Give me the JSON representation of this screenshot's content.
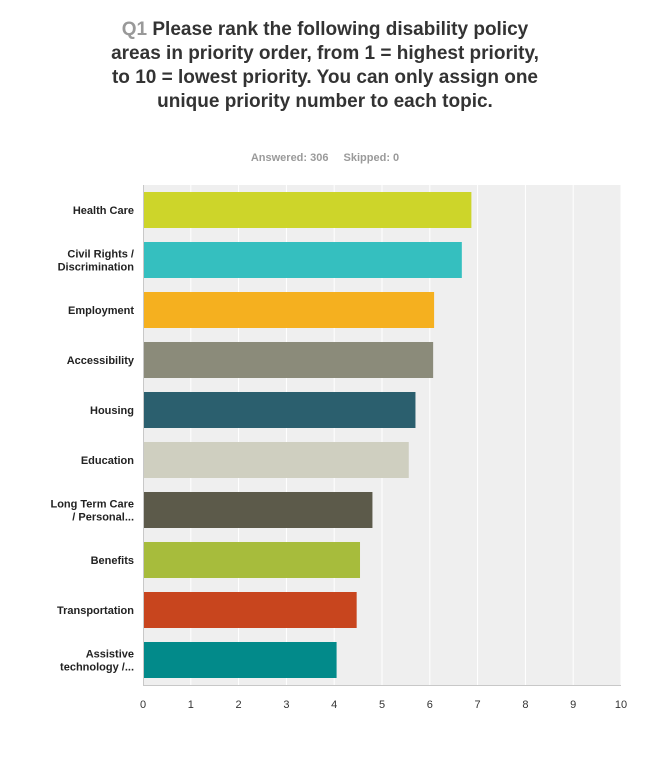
{
  "question": {
    "number": "Q1",
    "text": "Please rank the following disability policy areas in priority order, from 1 = highest priority, to 10 = lowest priority. You can only assign one unique priority number to each topic."
  },
  "meta": {
    "answered": "Answered: 306",
    "skipped": "Skipped: 0"
  },
  "chart_data": {
    "type": "bar",
    "orientation": "horizontal",
    "title": "",
    "xlabel": "",
    "ylabel": "",
    "xlim": [
      0,
      10
    ],
    "ticks": [
      0,
      1,
      2,
      3,
      4,
      5,
      6,
      7,
      8,
      9,
      10
    ],
    "grid": true,
    "categories": [
      [
        "Health Care"
      ],
      [
        "Civil Rights /",
        "Discrimination"
      ],
      [
        "Employment"
      ],
      [
        "Accessibility"
      ],
      [
        "Housing"
      ],
      [
        "Education"
      ],
      [
        "Long Term Care",
        "/ Personal..."
      ],
      [
        "Benefits"
      ],
      [
        "Transportation"
      ],
      [
        "Assistive",
        "technology /..."
      ]
    ],
    "values": [
      6.87,
      6.67,
      6.09,
      6.07,
      5.7,
      5.56,
      4.8,
      4.54,
      4.47,
      4.05
    ],
    "colors": [
      "#cdd52a",
      "#35bfbf",
      "#f5b01f",
      "#8b8b7a",
      "#2b5f6e",
      "#cfcfc0",
      "#5c5a4a",
      "#a7bc3c",
      "#c8451e",
      "#028a8a"
    ],
    "plot_background": "#efefef",
    "gridline_color": "#ffffff"
  }
}
